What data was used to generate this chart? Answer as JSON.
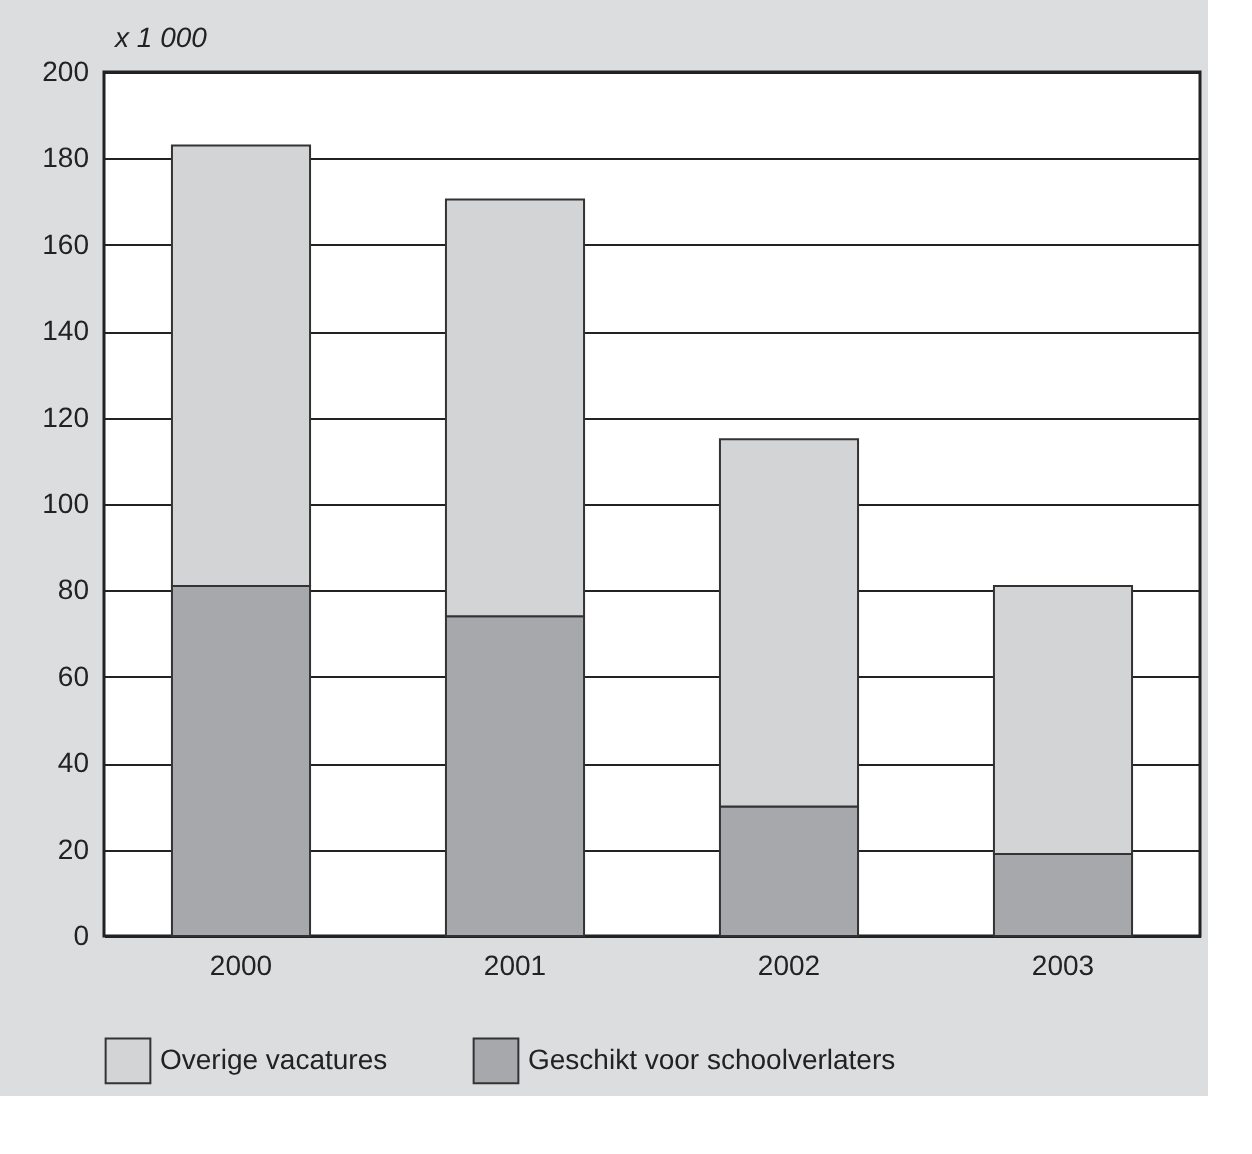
{
  "chart_data": {
    "type": "bar",
    "stacked": true,
    "ylabel": "x 1 000",
    "categories": [
      "2000",
      "2001",
      "2002",
      "2003"
    ],
    "series": [
      {
        "name": "Geschikt voor schoolverlaters",
        "color": "#a7a8ac",
        "values": [
          81,
          74,
          30,
          19
        ]
      },
      {
        "name": "Overige vacatures",
        "color": "#d3d4d6",
        "values": [
          102,
          96.5,
          85,
          62
        ]
      }
    ],
    "ylim": [
      0,
      200
    ],
    "yticks": [
      0,
      20,
      40,
      60,
      80,
      100,
      120,
      140,
      160,
      180,
      200
    ],
    "grid": "y",
    "legend": "bottom"
  }
}
